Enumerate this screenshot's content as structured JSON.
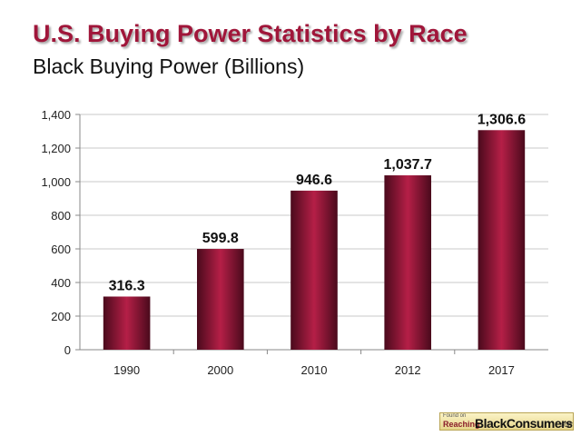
{
  "header": {
    "title": "U.S. Buying Power Statistics by Race",
    "subtitle": "Black Buying Power (Billions)"
  },
  "colors": {
    "title": "#a0163a",
    "bar_edge": "#4a0a1c",
    "bar_center": "#b51f47"
  },
  "chart_data": {
    "type": "bar",
    "title": "U.S. Buying Power Statistics by Race",
    "subtitle": "Black Buying Power (Billions)",
    "xlabel": "",
    "ylabel": "",
    "categories": [
      "1990",
      "2000",
      "2010",
      "2012",
      "2017"
    ],
    "values": [
      316.3,
      599.8,
      946.6,
      1037.7,
      1306.6
    ],
    "data_labels": [
      "316.3",
      "599.8",
      "946.6",
      "1,037.7",
      "1,306.6"
    ],
    "ylim": [
      0,
      1400
    ],
    "yticks": [
      0,
      200,
      400,
      600,
      800,
      1000,
      1200,
      1400
    ],
    "ytick_labels": [
      "0",
      "200",
      "400",
      "600",
      "800",
      "1,000",
      "1,200",
      "1,400"
    ],
    "grid": true,
    "legend": "none"
  },
  "badge": {
    "found_on": "Found on",
    "reaching": "Reaching",
    "black_consumers": "BlackConsumers",
    "dot_com": ".com"
  }
}
